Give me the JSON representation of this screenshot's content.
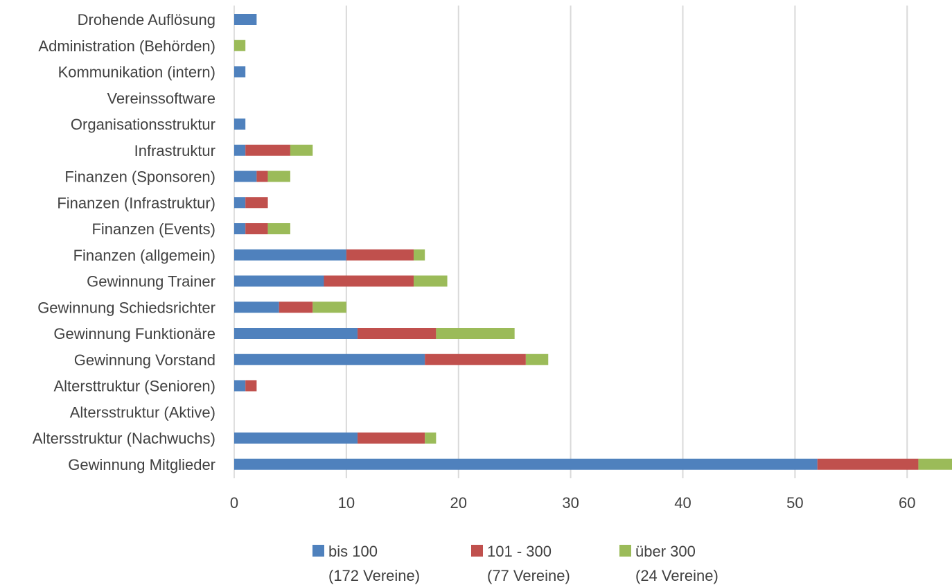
{
  "chart_data": {
    "type": "bar",
    "orientation": "horizontal",
    "stacked": true,
    "categories": [
      "Drohende Auflösung",
      "Administration (Behörden)",
      "Kommunikation (intern)",
      "Vereinssoftware",
      "Organisationsstruktur",
      "Infrastruktur",
      "Finanzen (Sponsoren)",
      "Finanzen (Infrastruktur)",
      "Finanzen (Events)",
      "Finanzen (allgemein)",
      "Gewinnung Trainer",
      "Gewinnung Schiedsrichter",
      "Gewinnung Funktionäre",
      "Gewinnung Vorstand",
      "Altersttruktur (Senioren)",
      "Altersstruktur (Aktive)",
      "Altersstruktur (Nachwuchs)",
      "Gewinnung Mitglieder"
    ],
    "series": [
      {
        "name": "bis 100",
        "sublabel": "(172 Vereine)",
        "color": "#4f81bd",
        "values": [
          2,
          0,
          1,
          0,
          1,
          1,
          2,
          1,
          1,
          10,
          8,
          4,
          11,
          17,
          1,
          0,
          11,
          52
        ]
      },
      {
        "name": "101 - 300",
        "sublabel": "(77 Vereine)",
        "color": "#c0504d",
        "values": [
          0,
          0,
          0,
          0,
          0,
          4,
          1,
          2,
          2,
          6,
          8,
          3,
          7,
          9,
          1,
          0,
          6,
          9
        ]
      },
      {
        "name": "über 300",
        "sublabel": "(24 Vereine)",
        "color": "#9bbb59",
        "values": [
          0,
          1,
          0,
          0,
          0,
          2,
          2,
          0,
          2,
          1,
          3,
          3,
          7,
          2,
          0,
          0,
          1,
          3
        ]
      }
    ],
    "xlim": [
      0,
      64
    ],
    "xticks": [
      0,
      10,
      20,
      30,
      40,
      50,
      60
    ],
    "title": "",
    "xlabel": "",
    "ylabel": "",
    "grid": "vertical",
    "legend_position": "bottom"
  }
}
